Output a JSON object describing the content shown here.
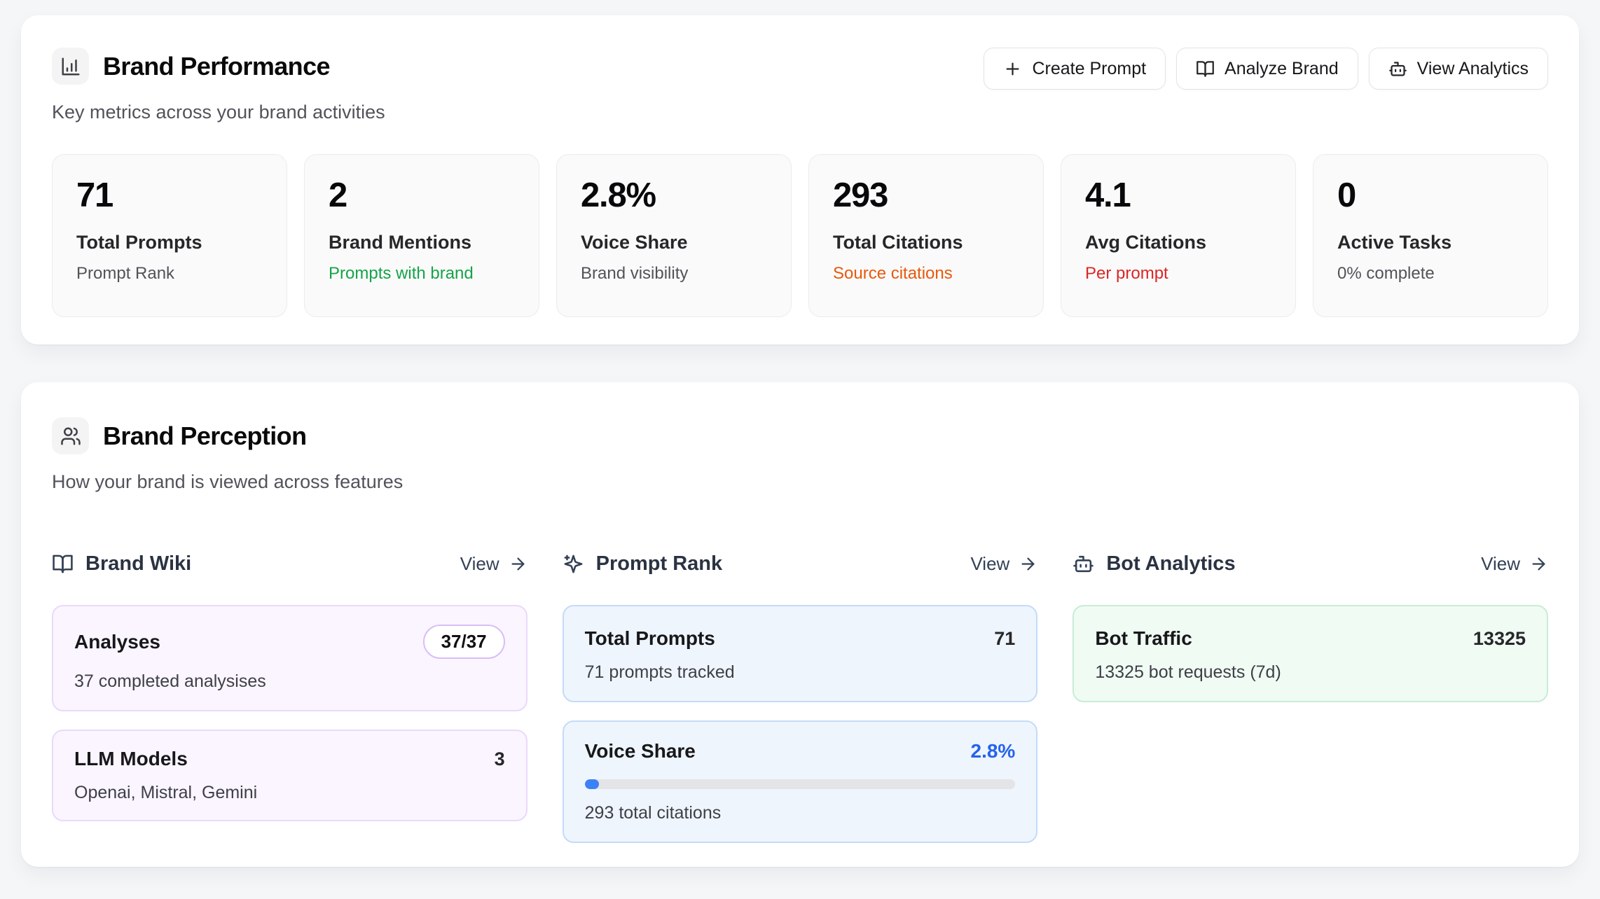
{
  "colors": {
    "page_background": "#f5f6f8",
    "panel_background": "#ffffff",
    "positive_green": "#16a34a",
    "citation_orange": "#ea580c",
    "alert_red": "#dc2626",
    "accent_blue": "#2563eb",
    "progress_fill_blue": "#3b82f6",
    "purple_card_bg": "#faf5ff",
    "blue_card_bg": "#eef5fd",
    "green_card_bg": "#f0fbf4",
    "link_slate": "#334155"
  },
  "performance": {
    "icon": "bar-chart-icon",
    "title": "Brand Performance",
    "subtitle": "Key metrics across your brand activities",
    "actions": [
      {
        "icon": "plus-icon",
        "label": "Create Prompt"
      },
      {
        "icon": "book-open-icon",
        "label": "Analyze Brand"
      },
      {
        "icon": "bot-icon",
        "label": "View Analytics"
      }
    ],
    "metrics": [
      {
        "value": "71",
        "label": "Total Prompts",
        "sub": "Prompt Rank",
        "sub_color": "#52525b"
      },
      {
        "value": "2",
        "label": "Brand Mentions",
        "sub": "Prompts with brand",
        "sub_color": "#16a34a"
      },
      {
        "value": "2.8%",
        "label": "Voice Share",
        "sub": "Brand visibility",
        "sub_color": "#52525b"
      },
      {
        "value": "293",
        "label": "Total Citations",
        "sub": "Source citations",
        "sub_color": "#ea580c"
      },
      {
        "value": "4.1",
        "label": "Avg Citations",
        "sub": "Per prompt",
        "sub_color": "#dc2626"
      },
      {
        "value": "0",
        "label": "Active Tasks",
        "sub": "0% complete",
        "sub_color": "#52525b"
      }
    ]
  },
  "perception": {
    "icon": "users-icon",
    "title": "Brand Perception",
    "subtitle": "How your brand is viewed across features",
    "columns": [
      {
        "icon": "book-open-icon",
        "title": "Brand Wiki",
        "view_label": "View",
        "cards": [
          {
            "title": "Analyses",
            "badge": "37/37",
            "sub": "37 completed analysises"
          },
          {
            "title": "LLM Models",
            "value": "3",
            "sub": "Openai, Mistral, Gemini"
          }
        ]
      },
      {
        "icon": "sparkles-icon",
        "title": "Prompt Rank",
        "view_label": "View",
        "cards": [
          {
            "title": "Total Prompts",
            "value": "71",
            "sub": "71 prompts tracked"
          },
          {
            "title": "Voice Share",
            "value": "2.8%",
            "progress_percent": 2.8,
            "sub": "293 total citations"
          }
        ]
      },
      {
        "icon": "bot-icon",
        "title": "Bot Analytics",
        "view_label": "View",
        "cards": [
          {
            "title": "Bot Traffic",
            "value": "13325",
            "sub": "13325 bot requests (7d)"
          }
        ]
      }
    ]
  }
}
